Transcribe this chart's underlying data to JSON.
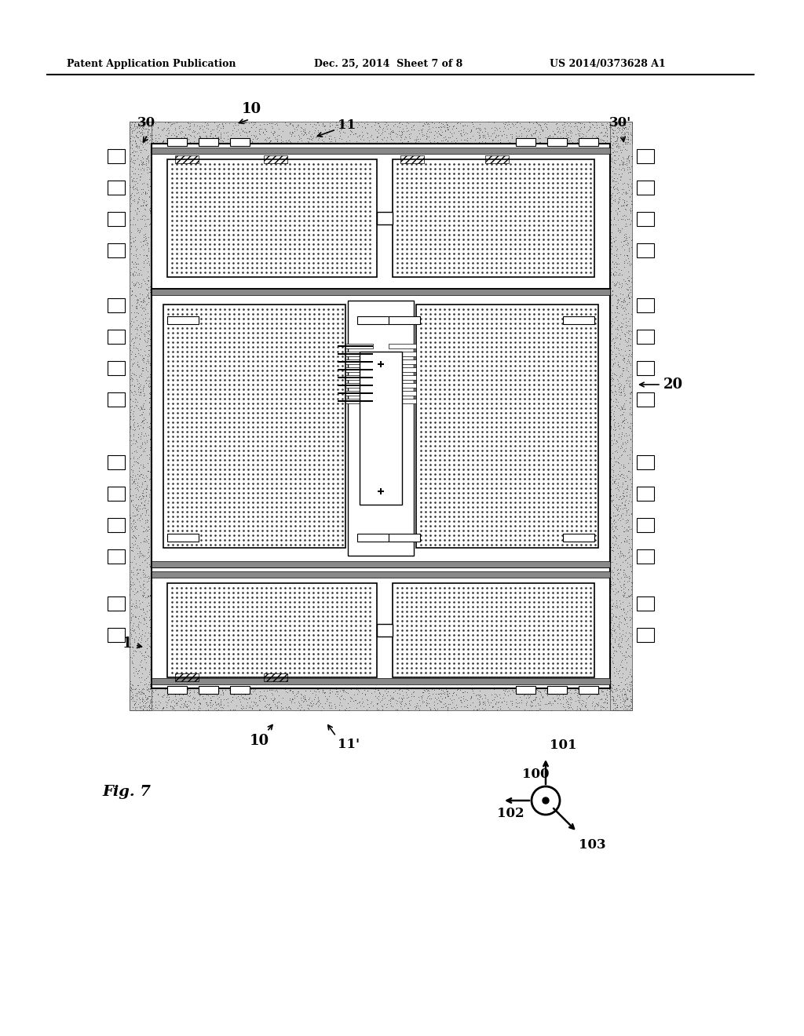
{
  "bg_color": "#ffffff",
  "header_text": "Patent Application Publication",
  "header_date": "Dec. 25, 2014  Sheet 7 of 8",
  "header_patent": "US 2014/0373628 A1",
  "fig_label": "Fig. 7",
  "label_10": "10",
  "label_10p": "10",
  "label_11": "11",
  "label_11p": "11'",
  "label_20": "20",
  "label_30": "30",
  "label_30p": "30'",
  "label_1": "1",
  "label_100": "100",
  "label_101": "101",
  "label_102": "102",
  "label_103": "103"
}
